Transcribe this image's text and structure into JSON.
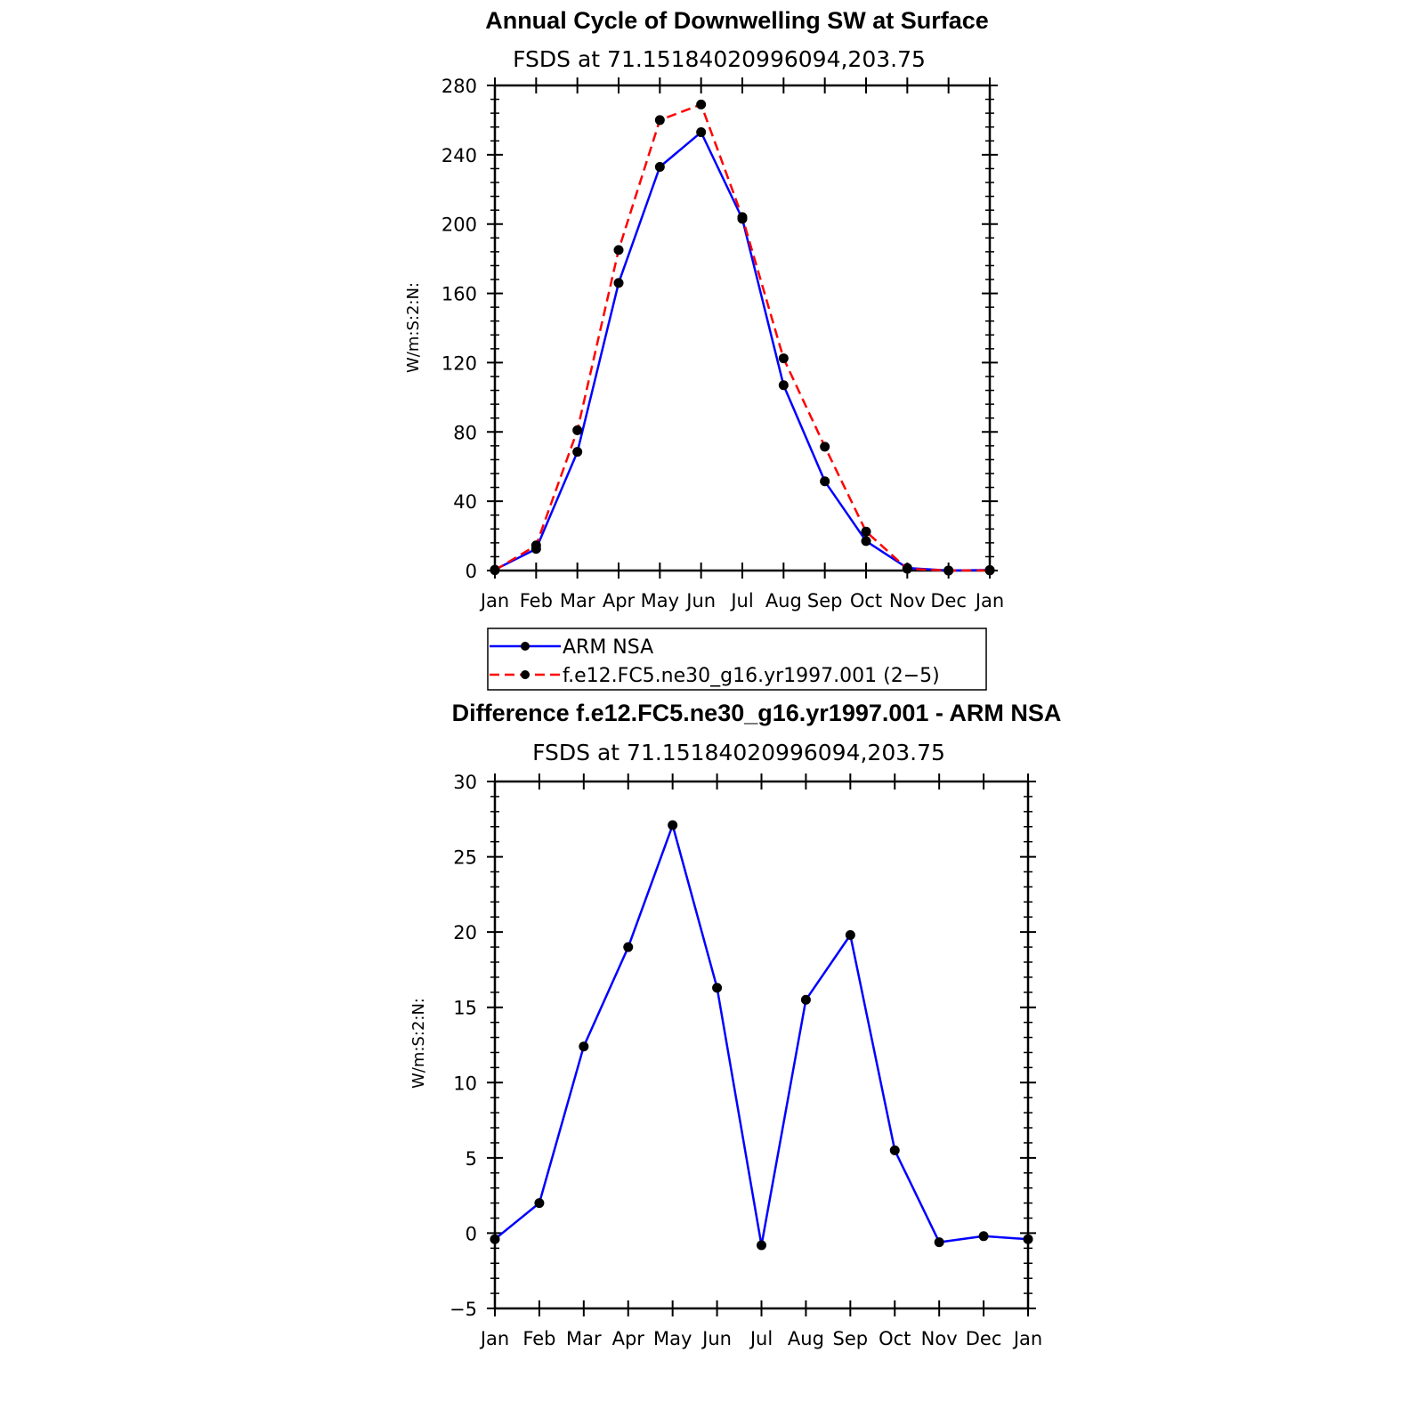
{
  "chart_data": [
    {
      "type": "line",
      "title": "Annual Cycle of Downwelling SW at Surface",
      "subtitle": "FSDS at 71.15184020996094,203.75",
      "ylabel": "W/m:S:2:N:",
      "xlabel": "",
      "categories": [
        "Jan",
        "Feb",
        "Mar",
        "Apr",
        "May",
        "Jun",
        "Jul",
        "Aug",
        "Sep",
        "Oct",
        "Nov",
        "Dec",
        "Jan"
      ],
      "ylim": [
        0,
        280
      ],
      "yticks": [
        0,
        40,
        80,
        120,
        160,
        200,
        240,
        280
      ],
      "series": [
        {
          "name": "ARM NSA",
          "color": "#0000ff",
          "dash": "solid",
          "values": [
            0.5,
            12.5,
            68.5,
            166,
            233,
            253,
            203,
            107,
            51.5,
            17,
            1.5,
            0,
            0.3
          ]
        },
        {
          "name": "f.e12.FC5.ne30_g16.yr1997.001 (2−5)",
          "color": "#ff0000",
          "dash": "dashed",
          "values": [
            0.2,
            14.5,
            81,
            185,
            260,
            269,
            204,
            122.5,
            71.5,
            22.5,
            1,
            0,
            0.1
          ]
        }
      ],
      "legend": "below"
    },
    {
      "type": "line",
      "title": "Difference f.e12.FC5.ne30_g16.yr1997.001 - ARM NSA",
      "subtitle": "FSDS at 71.15184020996094,203.75",
      "ylabel": "W/m:S:2:N:",
      "xlabel": "",
      "categories": [
        "Jan",
        "Feb",
        "Mar",
        "Apr",
        "May",
        "Jun",
        "Jul",
        "Aug",
        "Sep",
        "Oct",
        "Nov",
        "Dec",
        "Jan"
      ],
      "ylim": [
        -5,
        30
      ],
      "yticks": [
        -5,
        0,
        5,
        10,
        15,
        20,
        25,
        30
      ],
      "ytick_labels": [
        "−5",
        "0",
        "5",
        "10",
        "15",
        "20",
        "25",
        "30"
      ],
      "series": [
        {
          "color": "#0000ff",
          "dash": "solid",
          "values": [
            -0.4,
            2,
            12.4,
            19,
            27.1,
            16.3,
            -0.8,
            15.5,
            19.8,
            5.5,
            -0.6,
            -0.2,
            -0.4
          ]
        }
      ]
    }
  ]
}
